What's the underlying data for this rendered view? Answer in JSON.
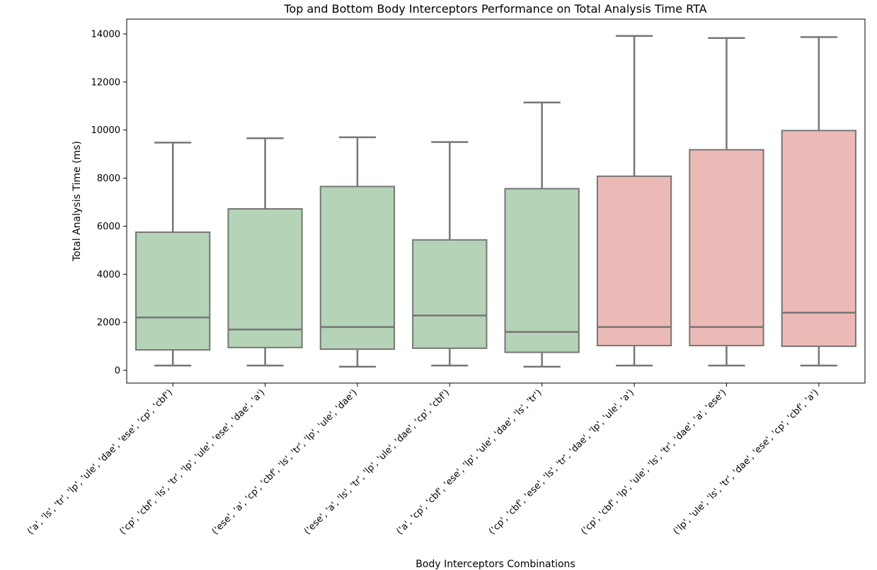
{
  "chart_data": {
    "type": "box",
    "title": "Top and Bottom Body Interceptors Performance on Total Analysis Time RTA",
    "xlabel": "Body Interceptors Combinations",
    "ylabel": "Total Analysis Time (ms)",
    "ylim": [
      -500,
      14600
    ],
    "yticks": [
      0,
      2000,
      4000,
      6000,
      8000,
      10000,
      12000,
      14000
    ],
    "grid": false,
    "categories": [
      "('a', 'ls', 'tr', 'lp', 'ule', 'dae', 'ese', 'cp', 'cbf')",
      "('cp', 'cbf', 'ls', 'tr', 'lp', 'ule', 'ese', 'dae', 'a')",
      "('ese', 'a', 'cp', 'cbf', 'ls', 'tr', 'lp', 'ule', 'dae')",
      "('ese', 'a', 'ls', 'tr', 'lp', 'ule', 'dae', 'cp', 'cbf')",
      "('a', 'cp', 'cbf', 'ese', 'lp', 'ule', 'dae', 'ls', 'tr')",
      "('cp', 'cbf', 'ese', 'ls', 'tr', 'dae', 'lp', 'ule', 'a')",
      "('cp', 'cbf', 'lp', 'ule', 'ls', 'tr', 'dae', 'a', 'ese')",
      "('lp', 'ule', 'ls', 'tr', 'dae', 'ese', 'cp', 'cbf', 'a')"
    ],
    "boxes": [
      {
        "whisker_low": 200,
        "q1": 850,
        "median": 2200,
        "q3": 5750,
        "whisker_high": 9480,
        "group": "top"
      },
      {
        "whisker_low": 200,
        "q1": 950,
        "median": 1700,
        "q3": 6720,
        "whisker_high": 9660,
        "group": "top"
      },
      {
        "whisker_low": 150,
        "q1": 880,
        "median": 1800,
        "q3": 7650,
        "whisker_high": 9700,
        "group": "top"
      },
      {
        "whisker_low": 200,
        "q1": 920,
        "median": 2280,
        "q3": 5430,
        "whisker_high": 9500,
        "group": "top"
      },
      {
        "whisker_low": 150,
        "q1": 750,
        "median": 1600,
        "q3": 7560,
        "whisker_high": 11150,
        "group": "top"
      },
      {
        "whisker_low": 200,
        "q1": 1030,
        "median": 1800,
        "q3": 8080,
        "whisker_high": 13920,
        "group": "bottom"
      },
      {
        "whisker_low": 200,
        "q1": 1030,
        "median": 1800,
        "q3": 9180,
        "whisker_high": 13830,
        "group": "bottom"
      },
      {
        "whisker_low": 200,
        "q1": 1000,
        "median": 2400,
        "q3": 9980,
        "whisker_high": 13870,
        "group": "bottom"
      }
    ],
    "colors": {
      "top": "#b5d3b6",
      "bottom": "#ecbab6",
      "line": "#767676"
    }
  }
}
